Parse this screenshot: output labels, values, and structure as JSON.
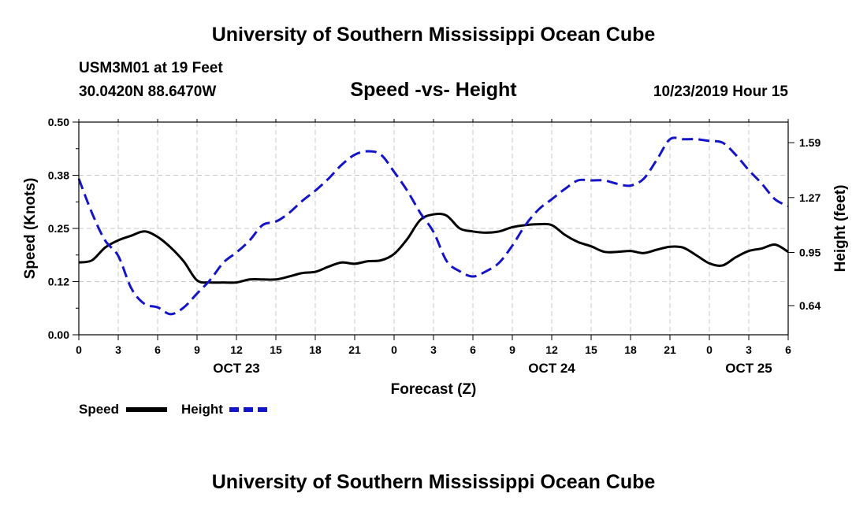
{
  "header": {
    "title": "University of Southern Mississippi Ocean Cube",
    "station": "USM3M01 at 19 Feet",
    "coords": "30.0420N 88.6470W",
    "chart_title": "Speed -vs- Height",
    "run_time": "10/23/2019 Hour 15"
  },
  "footer": {
    "title": "University of Southern Mississippi Ocean Cube"
  },
  "colors": {
    "speed": "#000000",
    "height": "#1414c8",
    "grid": "#c8c8c8"
  },
  "chart_data": {
    "type": "line",
    "title": "Speed -vs- Height",
    "xlabel": "Forecast (Z)",
    "ylabel": "Speed (Knots)",
    "y2label": "Height (feet)",
    "x_range": [
      0,
      54
    ],
    "x_ticks": [
      {
        "x": 0,
        "label": "0"
      },
      {
        "x": 3,
        "label": "3"
      },
      {
        "x": 6,
        "label": "6"
      },
      {
        "x": 9,
        "label": "9"
      },
      {
        "x": 12,
        "label": "12"
      },
      {
        "x": 15,
        "label": "15"
      },
      {
        "x": 18,
        "label": "18"
      },
      {
        "x": 21,
        "label": "21"
      },
      {
        "x": 24,
        "label": "0"
      },
      {
        "x": 27,
        "label": "3"
      },
      {
        "x": 30,
        "label": "6"
      },
      {
        "x": 33,
        "label": "9"
      },
      {
        "x": 36,
        "label": "12"
      },
      {
        "x": 39,
        "label": "15"
      },
      {
        "x": 42,
        "label": "18"
      },
      {
        "x": 45,
        "label": "21"
      },
      {
        "x": 48,
        "label": "0"
      },
      {
        "x": 51,
        "label": "3"
      },
      {
        "x": 54,
        "label": "6"
      }
    ],
    "date_labels": [
      {
        "x": 12,
        "label": "OCT 23"
      },
      {
        "x": 36,
        "label": "OCT 24"
      },
      {
        "x": 51,
        "label": "OCT 25"
      }
    ],
    "y_left": {
      "range": [
        0,
        0.5
      ],
      "ticks": [
        0,
        0.125,
        0.25,
        0.375,
        0.5
      ],
      "tick_labels": [
        "0.00",
        "0.12",
        "0.25",
        "0.38",
        "0.50"
      ]
    },
    "y_right": {
      "range": [
        0.47,
        1.71
      ],
      "ticks": [
        0.64,
        0.95,
        1.27,
        1.59
      ],
      "tick_labels": [
        "0.64",
        "0.95",
        "1.27",
        "1.59"
      ]
    },
    "series": [
      {
        "name": "Speed",
        "axis": "left",
        "x": [
          0,
          1,
          2,
          3,
          4,
          5,
          6,
          7,
          8,
          9,
          10,
          11,
          12,
          13,
          14,
          15,
          16,
          17,
          18,
          19,
          20,
          21,
          22,
          23,
          24,
          25,
          26,
          27,
          28,
          29,
          30,
          31,
          32,
          33,
          34,
          35,
          36,
          37,
          38,
          39,
          40,
          41,
          42,
          43,
          44,
          45,
          46,
          47,
          48,
          49,
          50,
          51,
          52,
          53,
          54
        ],
        "values": [
          0.17,
          0.175,
          0.205,
          0.222,
          0.233,
          0.243,
          0.23,
          0.205,
          0.172,
          0.128,
          0.123,
          0.123,
          0.123,
          0.13,
          0.13,
          0.13,
          0.137,
          0.145,
          0.148,
          0.16,
          0.17,
          0.167,
          0.173,
          0.175,
          0.19,
          0.225,
          0.27,
          0.283,
          0.28,
          0.25,
          0.243,
          0.24,
          0.243,
          0.253,
          0.258,
          0.26,
          0.258,
          0.235,
          0.218,
          0.208,
          0.195,
          0.195,
          0.197,
          0.192,
          0.2,
          0.207,
          0.205,
          0.187,
          0.168,
          0.163,
          0.182,
          0.197,
          0.203,
          0.212,
          0.195
        ]
      },
      {
        "name": "Height",
        "axis": "right",
        "x": [
          0,
          1,
          2,
          3,
          4,
          5,
          6,
          7,
          8,
          9,
          10,
          11,
          12,
          13,
          14,
          15,
          16,
          17,
          18,
          19,
          20,
          21,
          22,
          23,
          24,
          25,
          26,
          27,
          28,
          29,
          30,
          31,
          32,
          33,
          34,
          35,
          36,
          37,
          38,
          39,
          40,
          41,
          42,
          43,
          44,
          45,
          46,
          47,
          48,
          49,
          50,
          51,
          52,
          53,
          54
        ],
        "values": [
          1.38,
          1.18,
          1.02,
          0.93,
          0.74,
          0.65,
          0.63,
          0.59,
          0.63,
          0.71,
          0.79,
          0.89,
          0.95,
          1.02,
          1.11,
          1.13,
          1.18,
          1.25,
          1.31,
          1.38,
          1.46,
          1.52,
          1.54,
          1.52,
          1.42,
          1.31,
          1.18,
          1.07,
          0.9,
          0.84,
          0.81,
          0.84,
          0.89,
          0.99,
          1.11,
          1.2,
          1.26,
          1.32,
          1.37,
          1.37,
          1.37,
          1.35,
          1.34,
          1.38,
          1.49,
          1.61,
          1.61,
          1.61,
          1.6,
          1.59,
          1.52,
          1.43,
          1.35,
          1.26,
          1.22
        ]
      }
    ],
    "legend": [
      {
        "name": "Speed",
        "style": "solid"
      },
      {
        "name": "Height",
        "style": "dashed"
      }
    ]
  }
}
